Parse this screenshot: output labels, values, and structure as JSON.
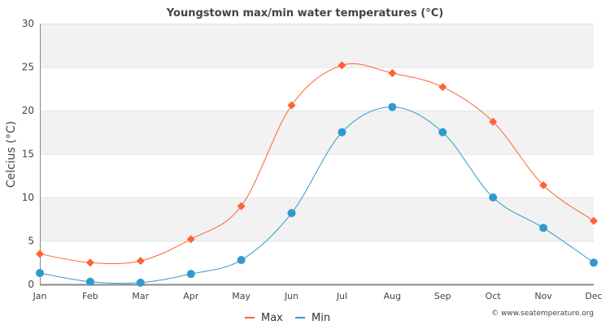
{
  "chart_data": {
    "type": "line",
    "title": "Youngstown max/min water temperatures (°C)",
    "xlabel": "",
    "ylabel": "Celcius (°C)",
    "ylim": [
      0,
      30
    ],
    "yticks": [
      "0",
      "5",
      "10",
      "15",
      "20",
      "25",
      "30"
    ],
    "categories": [
      "Jan",
      "Feb",
      "Mar",
      "Apr",
      "May",
      "Jun",
      "Jul",
      "Aug",
      "Sep",
      "Oct",
      "Nov",
      "Dec"
    ],
    "series": [
      {
        "name": "Max",
        "color": "#ff6333",
        "marker": "diamond",
        "values": [
          3.5,
          2.5,
          2.7,
          5.2,
          9.0,
          20.6,
          25.2,
          24.3,
          22.7,
          18.7,
          11.4,
          7.3
        ]
      },
      {
        "name": "Min",
        "color": "#3399cc",
        "marker": "circle",
        "values": [
          1.3,
          0.3,
          0.2,
          1.2,
          2.8,
          8.2,
          17.5,
          20.4,
          17.5,
          10.0,
          6.5,
          2.5
        ]
      }
    ],
    "grid": true,
    "legend": "bottom-center",
    "credit": "© www.seatemperature.org"
  }
}
